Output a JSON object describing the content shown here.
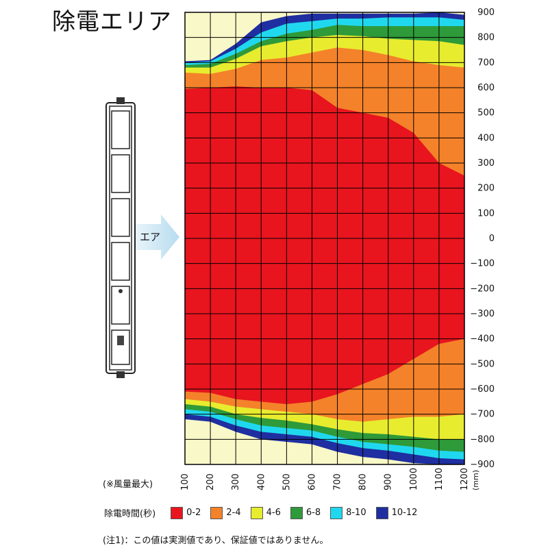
{
  "title": "除電エリア",
  "device": {
    "air_label": "エア"
  },
  "notes": {
    "max_air": "(※風量最大)",
    "footnote": "(注1)：この値は実測値であり、保証値ではありません。"
  },
  "chart_data": {
    "type": "heatmap",
    "title": "",
    "x_unit": "(mm)",
    "x_ticks": [
      100,
      200,
      300,
      400,
      500,
      600,
      700,
      800,
      900,
      1000,
      1100,
      1200
    ],
    "y_ticks": [
      900,
      800,
      700,
      600,
      500,
      400,
      300,
      200,
      100,
      0,
      -100,
      -200,
      -300,
      -400,
      -500,
      -600,
      -700,
      -800,
      -900
    ],
    "xlim": [
      0,
      1100
    ],
    "ylim": [
      -900,
      900
    ],
    "grid": true,
    "legend_title": "除電時間(秒)",
    "legend": [
      {
        "label": "0-2",
        "color": "#e8141e"
      },
      {
        "label": "2-4",
        "color": "#f4822a"
      },
      {
        "label": "4-6",
        "color": "#e8ec2e"
      },
      {
        "label": "6-8",
        "color": "#2e9a3a"
      },
      {
        "label": "8-10",
        "color": "#20d8ee"
      },
      {
        "label": "10-12",
        "color": "#1f2ea0"
      }
    ],
    "background_color": "#f8f8c8",
    "boundary_x": [
      0,
      100,
      200,
      300,
      400,
      500,
      600,
      700,
      800,
      900,
      1000,
      1100
    ],
    "bands_top": [
      {
        "range": "10-12",
        "y": [
          705,
          710,
          775,
          860,
          885,
          895,
          895,
          895,
          895,
          895,
          900,
          890
        ]
      },
      {
        "range": "8-10",
        "y": [
          700,
          705,
          755,
          820,
          855,
          865,
          875,
          875,
          880,
          880,
          880,
          870
        ]
      },
      {
        "range": "6-8",
        "y": [
          690,
          695,
          735,
          785,
          815,
          830,
          850,
          845,
          845,
          845,
          845,
          845
        ]
      },
      {
        "range": "4-6",
        "y": [
          680,
          680,
          715,
          765,
          785,
          800,
          810,
          805,
          795,
          790,
          785,
          770
        ]
      },
      {
        "range": "2-4",
        "y": [
          660,
          655,
          675,
          710,
          720,
          740,
          760,
          750,
          730,
          705,
          690,
          680
        ]
      },
      {
        "range": "0-2",
        "y": [
          595,
          600,
          605,
          600,
          600,
          590,
          520,
          500,
          480,
          420,
          300,
          250
        ]
      }
    ],
    "bands_bottom": [
      {
        "range": "10-12",
        "y": [
          -720,
          -730,
          -770,
          -800,
          -810,
          -820,
          -850,
          -870,
          -880,
          -895,
          -900,
          -900
        ]
      },
      {
        "range": "8-10",
        "y": [
          -700,
          -710,
          -745,
          -770,
          -780,
          -790,
          -815,
          -835,
          -845,
          -860,
          -875,
          -880
        ]
      },
      {
        "range": "6-8",
        "y": [
          -680,
          -690,
          -720,
          -745,
          -755,
          -765,
          -790,
          -810,
          -820,
          -830,
          -845,
          -850
        ]
      },
      {
        "range": "4-6",
        "y": [
          -660,
          -670,
          -700,
          -715,
          -725,
          -740,
          -760,
          -775,
          -780,
          -790,
          -800,
          -800
        ]
      },
      {
        "range": "2-4",
        "y": [
          -640,
          -650,
          -670,
          -680,
          -690,
          -700,
          -720,
          -730,
          -720,
          -710,
          -710,
          -700
        ]
      },
      {
        "range": "0-2",
        "y": [
          -610,
          -615,
          -640,
          -650,
          -660,
          -650,
          -620,
          -580,
          -540,
          -480,
          -420,
          -400
        ]
      }
    ]
  }
}
